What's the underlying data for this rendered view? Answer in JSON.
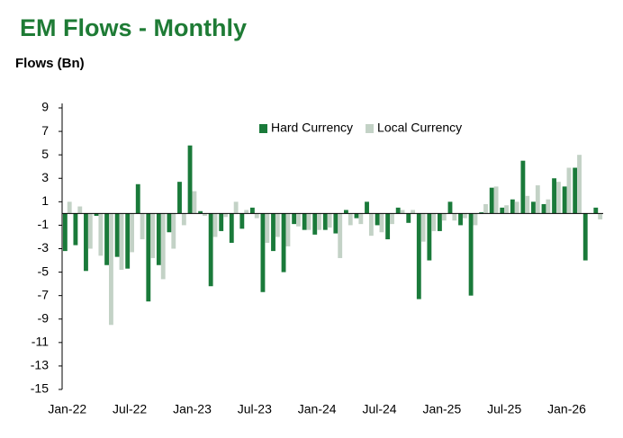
{
  "chart_data": {
    "type": "bar",
    "title": "EM Flows - Monthly",
    "y_label": "Flows (Bn)",
    "categories": [
      "Jan-22",
      null,
      null,
      null,
      null,
      null,
      "Jul-22",
      null,
      null,
      null,
      null,
      null,
      "Jan-23",
      null,
      null,
      null,
      null,
      null,
      "Jul-23",
      null,
      null,
      null,
      null,
      null,
      "Jan-24",
      null,
      null,
      null,
      null,
      null,
      "Jul-24",
      null,
      null,
      null,
      null,
      null,
      "Jan-25",
      null,
      null,
      null,
      null,
      null,
      "Jul-25",
      null,
      null,
      null,
      null,
      null,
      "Jan-26",
      null,
      null,
      null
    ],
    "series": [
      {
        "name": "Hard Currency",
        "color": "#1a7a3a",
        "values": [
          -3.2,
          -2.7,
          -4.9,
          -0.2,
          -4.4,
          -3.7,
          -4.7,
          2.5,
          -7.5,
          -4.4,
          -1.6,
          2.7,
          5.8,
          0.2,
          -6.2,
          -1.5,
          -2.5,
          -1.3,
          0.5,
          -6.7,
          -3.2,
          -5.0,
          -0.9,
          -1.4,
          -1.8,
          -1.4,
          -1.7,
          0.3,
          -0.4,
          1.0,
          -1.0,
          -2.2,
          0.5,
          -0.8,
          -7.3,
          -4.0,
          -1.5,
          1.0,
          -1.0,
          -7.0,
          0.1,
          2.2,
          0.5,
          1.2,
          4.5,
          1.0,
          0.8,
          3.0,
          2.3,
          3.9,
          -4.0,
          0.5
        ]
      },
      {
        "name": "Local Currency",
        "color": "#c3d2c6",
        "values": [
          1.0,
          0.6,
          -3.0,
          -3.6,
          -9.5,
          -4.8,
          -3.3,
          -2.2,
          -3.8,
          -5.6,
          -3.0,
          -1.0,
          1.9,
          -0.2,
          -2.0,
          -0.3,
          1.0,
          0.3,
          -0.4,
          -2.5,
          -2.0,
          -2.8,
          -1.1,
          -1.4,
          -1.4,
          -1.2,
          -3.8,
          -1.0,
          -0.9,
          -1.9,
          -1.6,
          -0.9,
          0.3,
          0.3,
          -2.4,
          -1.5,
          -0.6,
          -0.6,
          -0.4,
          -1.0,
          0.8,
          2.3,
          0.7,
          1.0,
          1.5,
          2.4,
          1.2,
          2.7,
          3.9,
          5.0,
          0.0,
          -0.5
        ]
      }
    ],
    "ylim": [
      -15,
      9
    ],
    "yticks": [
      -15,
      -13,
      -11,
      -9,
      -7,
      -5,
      -3,
      -1,
      1,
      3,
      5,
      7,
      9
    ],
    "grid": false,
    "legend": "top"
  }
}
